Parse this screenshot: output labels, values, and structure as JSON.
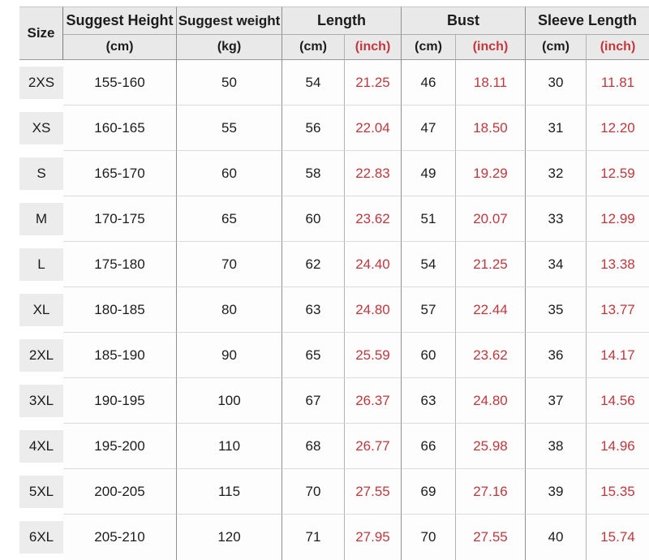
{
  "chart_data": {
    "type": "table",
    "header": {
      "size": "Size",
      "suggest_height": "Suggest Height",
      "suggest_weight": "Suggest weight",
      "length": "Length",
      "bust": "Bust",
      "sleeve_length": "Sleeve Length",
      "unit_cm": "(cm)",
      "unit_kg": "(kg)",
      "unit_inch": "(inch)"
    },
    "rows": [
      {
        "size": "2XS",
        "height": "155-160",
        "weight": "50",
        "length_cm": "54",
        "length_inch": "21.25",
        "bust_cm": "46",
        "bust_inch": "18.11",
        "sleeve_cm": "30",
        "sleeve_inch": "11.81"
      },
      {
        "size": "XS",
        "height": "160-165",
        "weight": "55",
        "length_cm": "56",
        "length_inch": "22.04",
        "bust_cm": "47",
        "bust_inch": "18.50",
        "sleeve_cm": "31",
        "sleeve_inch": "12.20"
      },
      {
        "size": "S",
        "height": "165-170",
        "weight": "60",
        "length_cm": "58",
        "length_inch": "22.83",
        "bust_cm": "49",
        "bust_inch": "19.29",
        "sleeve_cm": "32",
        "sleeve_inch": "12.59"
      },
      {
        "size": "M",
        "height": "170-175",
        "weight": "65",
        "length_cm": "60",
        "length_inch": "23.62",
        "bust_cm": "51",
        "bust_inch": "20.07",
        "sleeve_cm": "33",
        "sleeve_inch": "12.99"
      },
      {
        "size": "L",
        "height": "175-180",
        "weight": "70",
        "length_cm": "62",
        "length_inch": "24.40",
        "bust_cm": "54",
        "bust_inch": "21.25",
        "sleeve_cm": "34",
        "sleeve_inch": "13.38"
      },
      {
        "size": "XL",
        "height": "180-185",
        "weight": "80",
        "length_cm": "63",
        "length_inch": "24.80",
        "bust_cm": "57",
        "bust_inch": "22.44",
        "sleeve_cm": "35",
        "sleeve_inch": "13.77"
      },
      {
        "size": "2XL",
        "height": "185-190",
        "weight": "90",
        "length_cm": "65",
        "length_inch": "25.59",
        "bust_cm": "60",
        "bust_inch": "23.62",
        "sleeve_cm": "36",
        "sleeve_inch": "14.17"
      },
      {
        "size": "3XL",
        "height": "190-195",
        "weight": "100",
        "length_cm": "67",
        "length_inch": "26.37",
        "bust_cm": "63",
        "bust_inch": "24.80",
        "sleeve_cm": "37",
        "sleeve_inch": "14.56"
      },
      {
        "size": "4XL",
        "height": "195-200",
        "weight": "110",
        "length_cm": "68",
        "length_inch": "26.77",
        "bust_cm": "66",
        "bust_inch": "25.98",
        "sleeve_cm": "38",
        "sleeve_inch": "14.96"
      },
      {
        "size": "5XL",
        "height": "200-205",
        "weight": "115",
        "length_cm": "70",
        "length_inch": "27.55",
        "bust_cm": "69",
        "bust_inch": "27.16",
        "sleeve_cm": "39",
        "sleeve_inch": "15.35"
      },
      {
        "size": "6XL",
        "height": "205-210",
        "weight": "120",
        "length_cm": "71",
        "length_inch": "27.95",
        "bust_cm": "70",
        "bust_inch": "27.55",
        "sleeve_cm": "40",
        "sleeve_inch": "15.74"
      }
    ]
  },
  "colors": {
    "accent_red": "#c2373d",
    "header_bg": "#e9e9e9",
    "size_chip_bg": "#ececec",
    "grid_line_strong": "#8f8f8f",
    "grid_line_light": "#b2b2b2",
    "row_divider": "#dcdcdc",
    "text": "#1c1c1c"
  }
}
